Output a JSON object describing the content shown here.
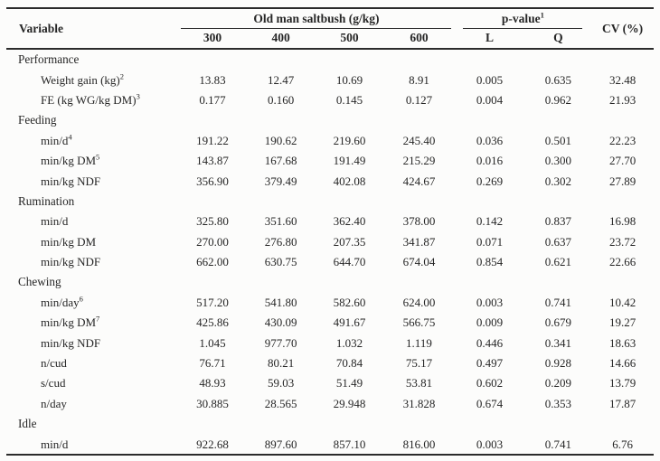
{
  "header": {
    "variable": "Variable",
    "saltbush_group": "Old man saltbush (g/kg)",
    "saltbush_levels": [
      "300",
      "400",
      "500",
      "600"
    ],
    "pvalue_group": {
      "label": "p-value",
      "sup": "1"
    },
    "pvalue_cols": [
      "L",
      "Q"
    ],
    "cv": "CV (%)"
  },
  "sections": [
    {
      "title": "Performance",
      "rows": [
        {
          "label": "Weight gain (kg)",
          "sup": "2",
          "values": [
            "13.83",
            "12.47",
            "10.69",
            "8.91",
            "0.005",
            "0.635",
            "32.48"
          ]
        },
        {
          "label": "FE (kg WG/kg DM)",
          "sup": "3",
          "values": [
            "0.177",
            "0.160",
            "0.145",
            "0.127",
            "0.004",
            "0.962",
            "21.93"
          ]
        }
      ]
    },
    {
      "title": "Feeding",
      "rows": [
        {
          "label": "min/d",
          "sup": "4",
          "values": [
            "191.22",
            "190.62",
            "219.60",
            "245.40",
            "0.036",
            "0.501",
            "22.23"
          ]
        },
        {
          "label": "min/kg DM",
          "sup": "5",
          "values": [
            "143.87",
            "167.68",
            "191.49",
            "215.29",
            "0.016",
            "0.300",
            "27.70"
          ]
        },
        {
          "label": "min/kg NDF",
          "sup": "",
          "values": [
            "356.90",
            "379.49",
            "402.08",
            "424.67",
            "0.269",
            "0.302",
            "27.89"
          ]
        }
      ]
    },
    {
      "title": "Rumination",
      "rows": [
        {
          "label": "min/d",
          "sup": "",
          "values": [
            "325.80",
            "351.60",
            "362.40",
            "378.00",
            "0.142",
            "0.837",
            "16.98"
          ]
        },
        {
          "label": "min/kg DM",
          "sup": "",
          "values": [
            "270.00",
            "276.80",
            "207.35",
            "341.87",
            "0.071",
            "0.637",
            "23.72"
          ]
        },
        {
          "label": "min/kg NDF",
          "sup": "",
          "values": [
            "662.00",
            "630.75",
            "644.70",
            "674.04",
            "0.854",
            "0.621",
            "22.66"
          ]
        }
      ]
    },
    {
      "title": "Chewing",
      "rows": [
        {
          "label": "min/day",
          "sup": "6",
          "values": [
            "517.20",
            "541.80",
            "582.60",
            "624.00",
            "0.003",
            "0.741",
            "10.42"
          ]
        },
        {
          "label": "min/kg DM",
          "sup": "7",
          "values": [
            "425.86",
            "430.09",
            "491.67",
            "566.75",
            "0.009",
            "0.679",
            "19.27"
          ]
        },
        {
          "label": "min/kg NDF",
          "sup": "",
          "values": [
            "1.045",
            "977.70",
            "1.032",
            "1.119",
            "0.446",
            "0.341",
            "18.63"
          ]
        },
        {
          "label": "n/cud",
          "sup": "",
          "values": [
            "76.71",
            "80.21",
            "70.84",
            "75.17",
            "0.497",
            "0.928",
            "14.66"
          ]
        },
        {
          "label": "s/cud",
          "sup": "",
          "values": [
            "48.93",
            "59.03",
            "51.49",
            "53.81",
            "0.602",
            "0.209",
            "13.79"
          ]
        },
        {
          "label": "n/day",
          "sup": "",
          "values": [
            "30.885",
            "28.565",
            "29.948",
            "31.828",
            "0.674",
            "0.353",
            "17.87"
          ]
        }
      ]
    },
    {
      "title": "Idle",
      "rows": [
        {
          "label": "min/d",
          "sup": "",
          "values": [
            "922.68",
            "897.60",
            "857.10",
            "816.00",
            "0.003",
            "0.741",
            "6.76"
          ]
        }
      ]
    }
  ]
}
